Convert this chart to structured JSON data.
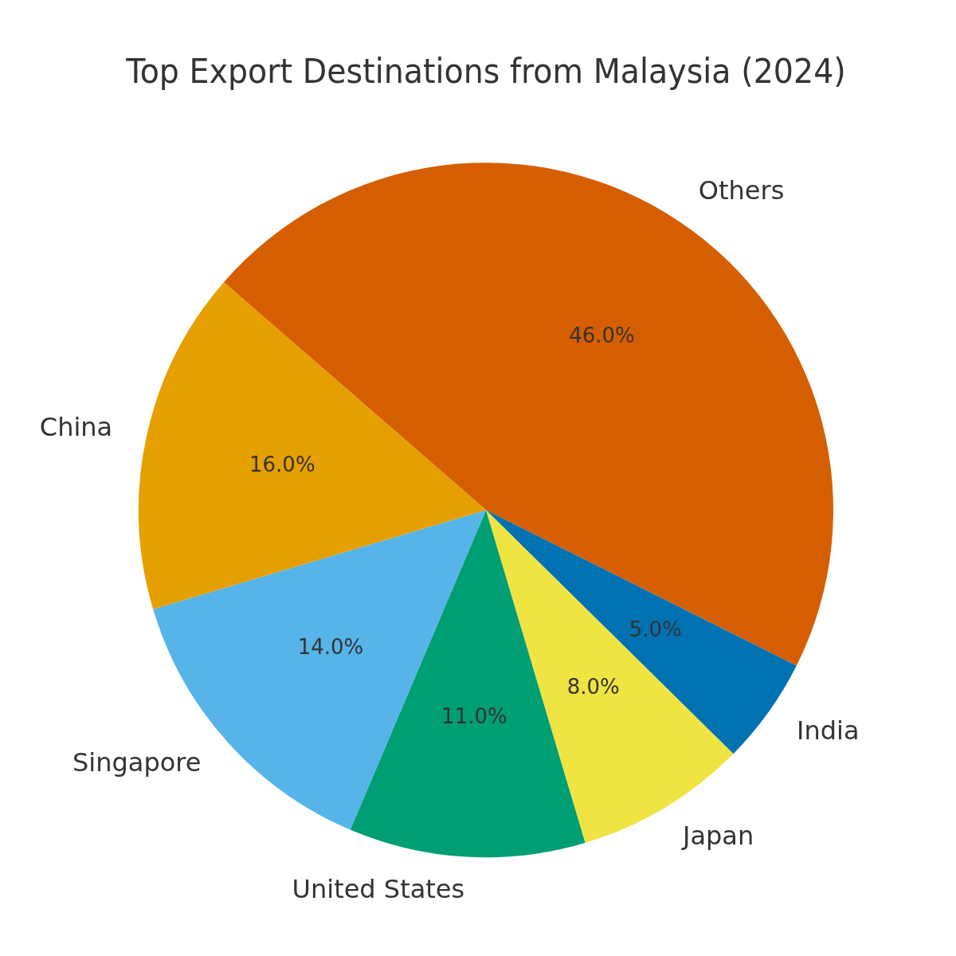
{
  "chart_data": {
    "type": "pie",
    "title": "Top Export Destinations from Malaysia (2024)",
    "categories": [
      "China",
      "Singapore",
      "United States",
      "Japan",
      "India",
      "Others"
    ],
    "values": [
      16,
      14,
      11,
      8,
      5,
      46
    ],
    "colors": [
      "#e69f00",
      "#56b4e9",
      "#009e73",
      "#f0e442",
      "#0072b2",
      "#d55e00"
    ],
    "value_labels": [
      "16.0%",
      "14.0%",
      "11.0%",
      "8.0%",
      "5.0%",
      "46.0%"
    ],
    "legend": false
  }
}
